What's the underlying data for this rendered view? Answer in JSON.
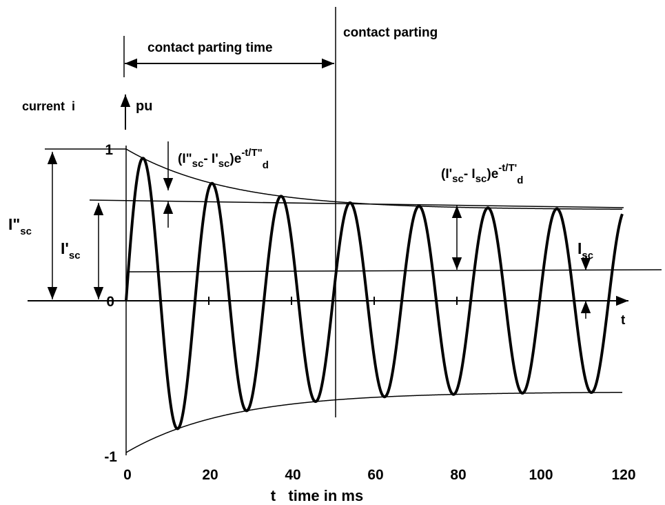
{
  "chart_data": {
    "type": "line",
    "x_ticks": [
      0,
      20,
      40,
      60,
      80,
      100,
      120
    ],
    "y_ticks": [
      -1,
      0,
      1
    ],
    "xlim": [
      0,
      120
    ],
    "ylim": [
      -1,
      1
    ],
    "x_axis_label": "t",
    "x_axis_unit_label": "t   time in ms",
    "y_axis_label": "current  i",
    "y_axis_unit": "pu",
    "series": [
      {
        "kind": "waveform",
        "period_ms": 16.67,
        "upper_envelope": {
          "start": 1.0,
          "steady": 0.6,
          "decay_time_ms": 25
        },
        "lower_envelope": {
          "start": -1.0,
          "steady": -0.6,
          "decay_time_ms": 25
        }
      }
    ],
    "reference_lines": {
      "i_prime_sc_level": 0.66,
      "i_sc_level": 0.19,
      "contact_parting_ms": 51
    },
    "annotations": {
      "contact_parting": "contact parting",
      "contact_parting_time": "contact parting time",
      "i_double_prime_sc": {
        "main": "I\"",
        "sub": "sc"
      },
      "i_prime_sc": {
        "main": "I'",
        "sub": "sc"
      },
      "i_sc": {
        "main": "I",
        "sub": "sc"
      },
      "subtransient_decay": {
        "p1": "(I\"",
        "s1": "sc",
        "p2": "- I'",
        "s2": "sc",
        "p3": ")e",
        "sup": "-t/T\"",
        "sub": "d"
      },
      "transient_decay": {
        "p1": "(I'",
        "s1": "sc",
        "p2": "- I",
        "s2": "sc",
        "p3": ")e",
        "sup": "-t/T'",
        "sub": "d"
      }
    }
  }
}
